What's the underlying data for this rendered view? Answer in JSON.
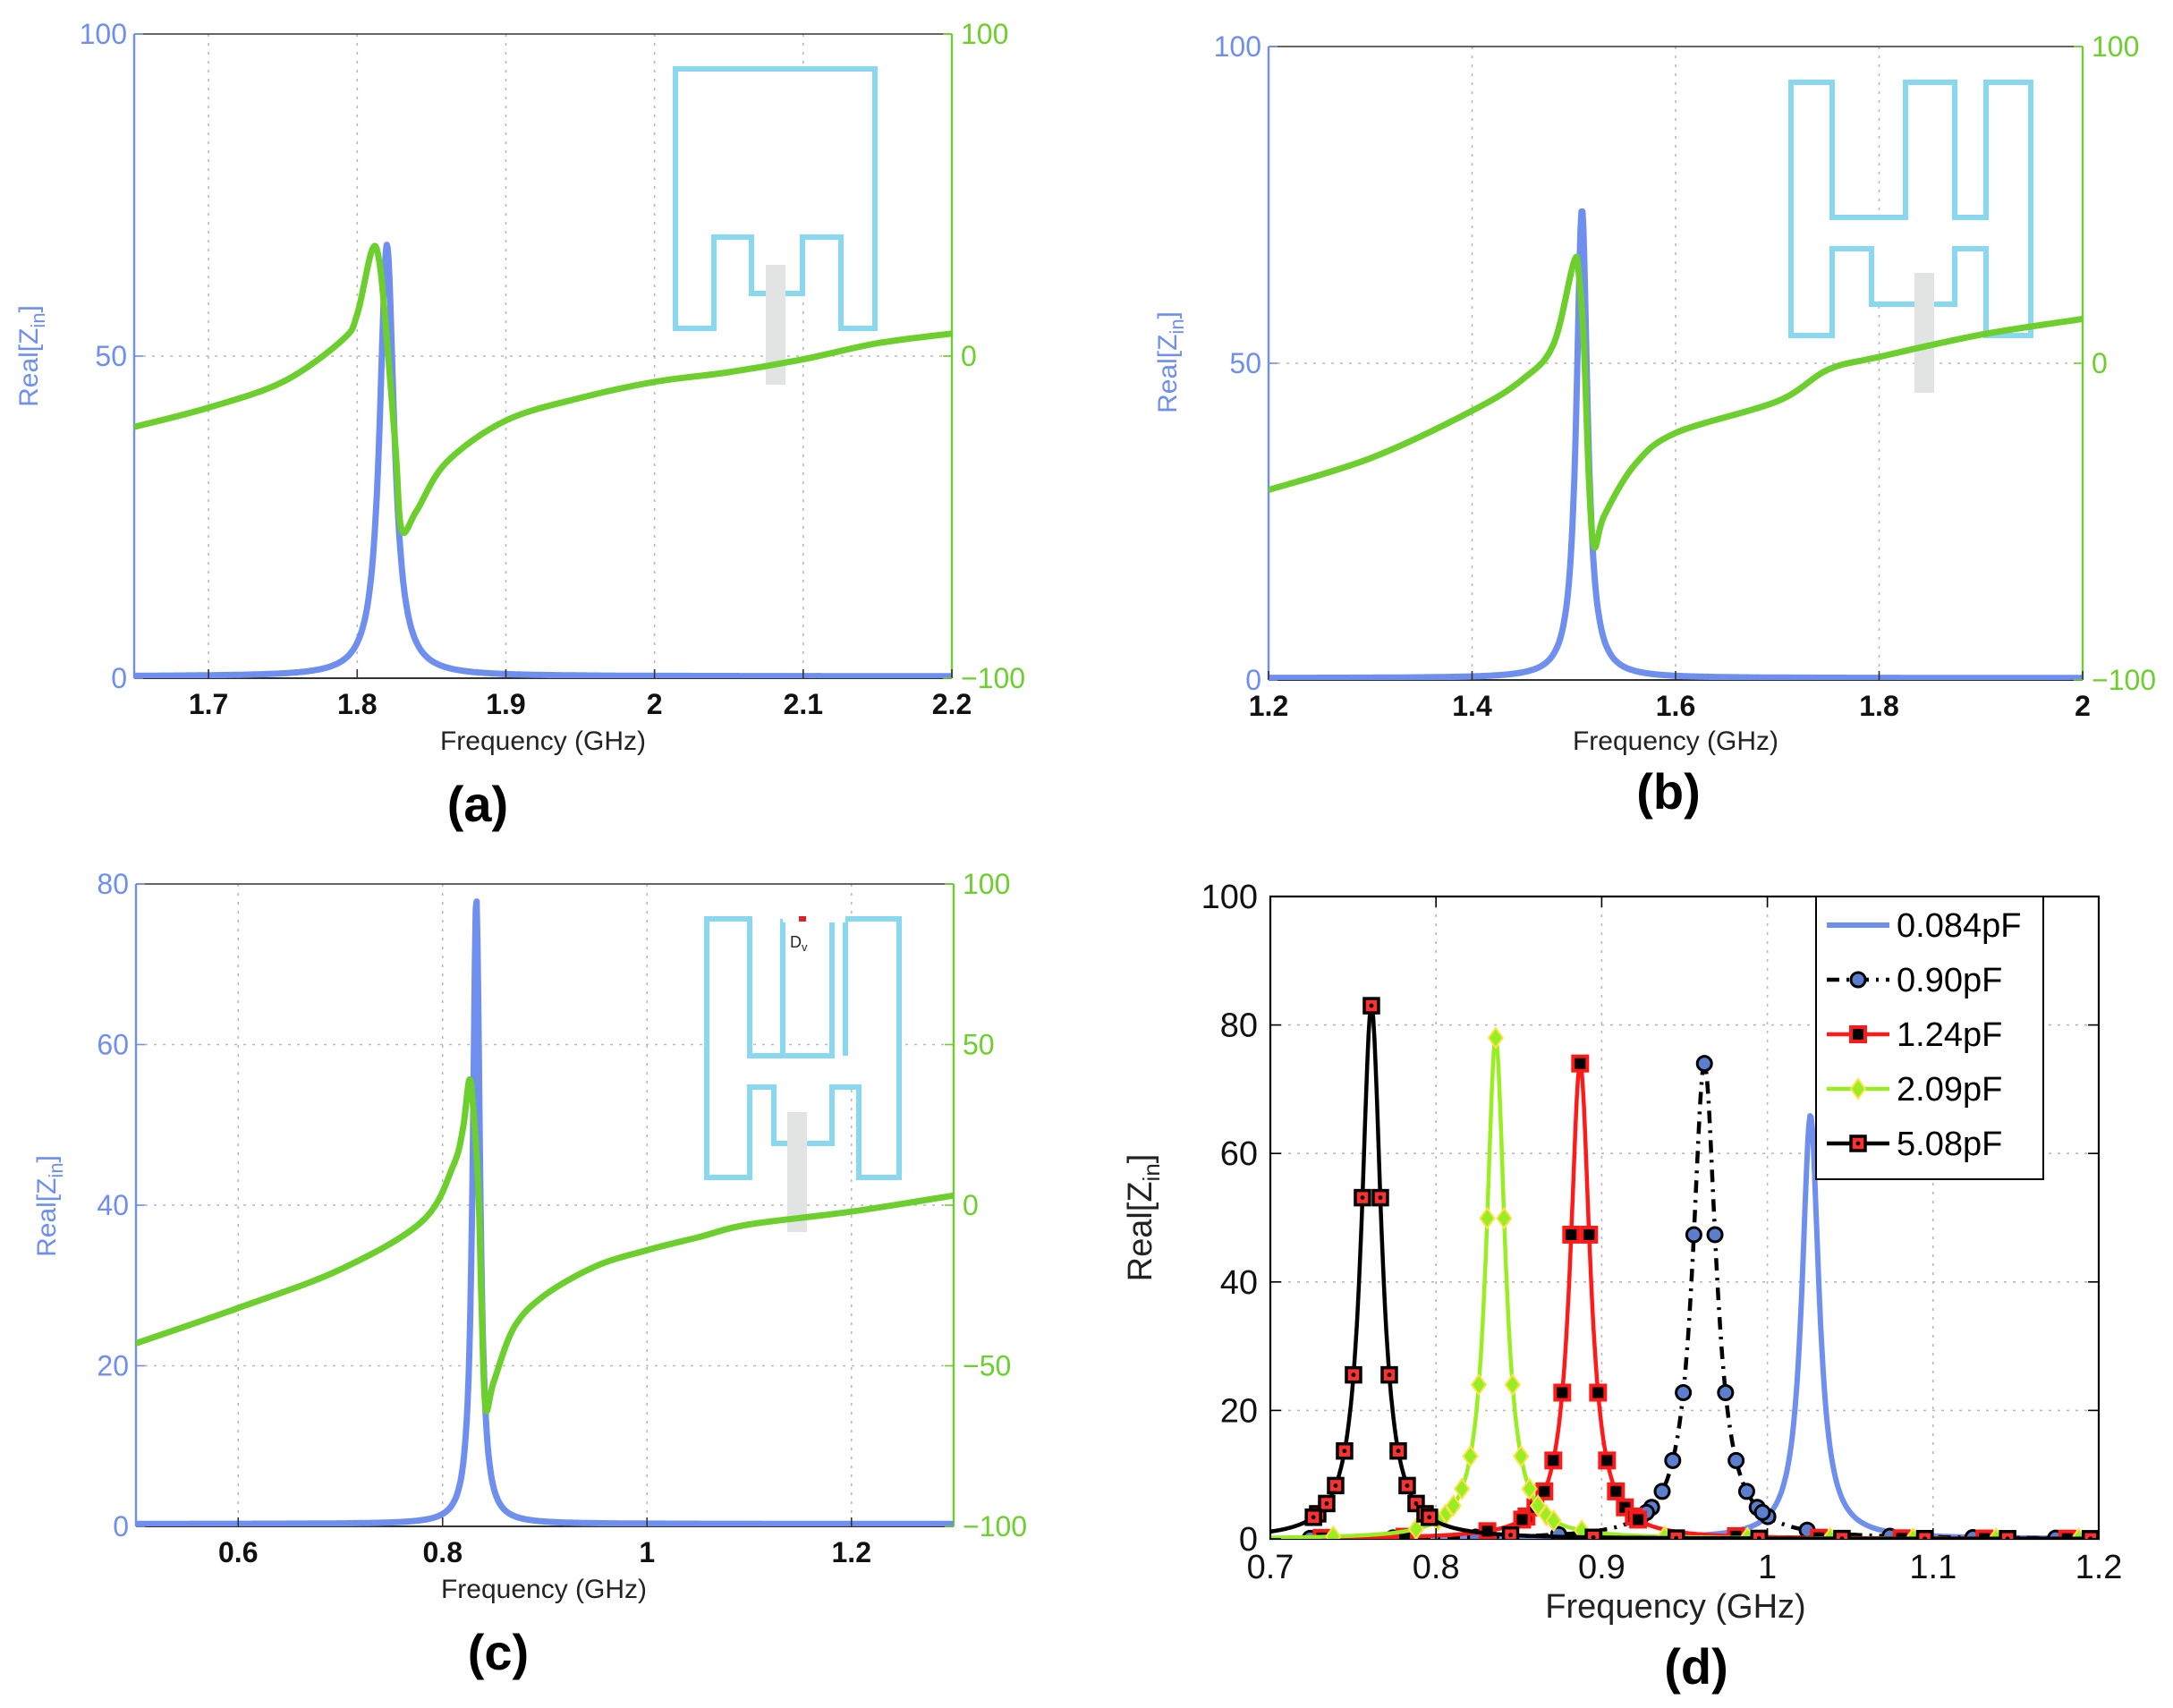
{
  "colors": {
    "left_axis": "#6f8fef",
    "right_axis": "#6dcf2e",
    "inset": "#8ad8f0",
    "feed": "#e2e4e4"
  },
  "chart_data": [
    {
      "panel_label": "(a)",
      "type": "line",
      "xlabel": "Frequency (GHz)",
      "ylabel": "Real[Z",
      "ylabel_sub": "in",
      "ylabel_close": "]",
      "xlim": [
        1.65,
        2.2
      ],
      "ylim_left": [
        0,
        100
      ],
      "ylim_right": [
        -100,
        100
      ],
      "xticks": [
        "1.7",
        "1.8",
        "1.9",
        "2",
        "2.1",
        "2.2"
      ],
      "yticks_left": [
        "0",
        "50",
        "100"
      ],
      "yticks_right": [
        "−100",
        "0",
        "100"
      ],
      "grid": true,
      "series": [
        {
          "axis": "left",
          "color": "#6f8fef",
          "peak_x": 1.82,
          "peak_y": 67,
          "width": 0.0058,
          "base": 0.3
        },
        {
          "axis": "right",
          "color": "#6dcf2e",
          "points": [
            [
              1.65,
              -22
            ],
            [
              1.7,
              -16
            ],
            [
              1.75,
              -8
            ],
            [
              1.79,
              5
            ],
            [
              1.8,
              13
            ],
            [
              1.81,
              33
            ],
            [
              1.815,
              29
            ],
            [
              1.82,
              5
            ],
            [
              1.826,
              -30
            ],
            [
              1.83,
              -54
            ],
            [
              1.84,
              -48
            ],
            [
              1.86,
              -33
            ],
            [
              1.9,
              -20
            ],
            [
              1.95,
              -13
            ],
            [
              2.0,
              -8
            ],
            [
              2.05,
              -5
            ],
            [
              2.1,
              -1
            ],
            [
              2.15,
              4
            ],
            [
              2.2,
              7
            ]
          ]
        }
      ]
    },
    {
      "panel_label": "(b)",
      "type": "line",
      "xlabel": "Frequency (GHz)",
      "ylabel": "Real[Z",
      "ylabel_sub": "in",
      "ylabel_close": "]",
      "xlim": [
        1.2,
        2.0
      ],
      "ylim_left": [
        0,
        100
      ],
      "ylim_right": [
        -100,
        100
      ],
      "xticks": [
        "1.2",
        "1.4",
        "1.6",
        "1.8",
        "2"
      ],
      "yticks_left": [
        "0",
        "50",
        "100"
      ],
      "yticks_right": [
        "−100",
        "0",
        "100"
      ],
      "grid": true,
      "series": [
        {
          "axis": "left",
          "color": "#6f8fef",
          "peak_x": 1.508,
          "peak_y": 74,
          "width": 0.0065,
          "base": 0.3
        },
        {
          "axis": "right",
          "color": "#6dcf2e",
          "points": [
            [
              1.2,
              -40
            ],
            [
              1.3,
              -30
            ],
            [
              1.4,
              -15
            ],
            [
              1.45,
              -5
            ],
            [
              1.48,
              6
            ],
            [
              1.5,
              32
            ],
            [
              1.505,
              28
            ],
            [
              1.51,
              5
            ],
            [
              1.515,
              -38
            ],
            [
              1.52,
              -58
            ],
            [
              1.53,
              -48
            ],
            [
              1.56,
              -32
            ],
            [
              1.6,
              -22
            ],
            [
              1.7,
              -12
            ],
            [
              1.75,
              -2
            ],
            [
              1.8,
              2
            ],
            [
              1.9,
              9
            ],
            [
              2.0,
              14
            ]
          ]
        }
      ]
    },
    {
      "panel_label": "(c)",
      "type": "line",
      "xlabel": "Frequency (GHz)",
      "ylabel": "Real[Z",
      "ylabel_sub": "in",
      "ylabel_close": "]",
      "xlim": [
        0.5,
        1.3
      ],
      "ylim_left": [
        0,
        80
      ],
      "ylim_right": [
        -100,
        100
      ],
      "xticks": [
        "0.6",
        "0.8",
        "1",
        "1.2"
      ],
      "yticks_left": [
        "0",
        "20",
        "40",
        "60",
        "80"
      ],
      "yticks_right": [
        "−100",
        "−50",
        "0",
        "50",
        "100"
      ],
      "inset_text": "D",
      "inset_text_sub": "v",
      "grid": true,
      "series": [
        {
          "axis": "left",
          "color": "#6f8fef",
          "peak_x": 0.833,
          "peak_y": 78,
          "width": 0.0042,
          "base": 0.3
        },
        {
          "axis": "right",
          "color": "#6dcf2e",
          "points": [
            [
              0.5,
              -43
            ],
            [
              0.6,
              -32
            ],
            [
              0.7,
              -20
            ],
            [
              0.78,
              -5
            ],
            [
              0.81,
              12
            ],
            [
              0.82,
              24
            ],
            [
              0.826,
              39
            ],
            [
              0.83,
              30
            ],
            [
              0.835,
              5
            ],
            [
              0.838,
              -30
            ],
            [
              0.842,
              -63
            ],
            [
              0.85,
              -55
            ],
            [
              0.87,
              -38
            ],
            [
              0.9,
              -28
            ],
            [
              0.95,
              -19
            ],
            [
              1.0,
              -14
            ],
            [
              1.05,
              -10
            ],
            [
              1.1,
              -6
            ],
            [
              1.2,
              -2
            ],
            [
              1.3,
              3
            ]
          ]
        }
      ]
    },
    {
      "panel_label": "(d)",
      "type": "line",
      "xlabel": "Frequency (GHz)",
      "ylabel": "Real[Z",
      "ylabel_sub": "in",
      "ylabel_close": "]",
      "xlim": [
        0.7,
        1.2
      ],
      "ylim": [
        0,
        100
      ],
      "xticks": [
        "0.7",
        "0.8",
        "0.9",
        "1",
        "1.1",
        "1.2"
      ],
      "yticks": [
        "0",
        "20",
        "40",
        "60",
        "80",
        "100"
      ],
      "legend_position": "top-right",
      "series": [
        {
          "name": "0.084pF",
          "color": "#6f8fef",
          "style": "solid",
          "marker": "none",
          "peak_x": 1.026,
          "peak_y": 66,
          "width": 0.0062
        },
        {
          "name": "0.90pF",
          "color": "#000000",
          "style": "dashdot",
          "marker": "circle",
          "peak_x": 0.962,
          "peak_y": 74,
          "width": 0.0085
        },
        {
          "name": "1.24pF",
          "color": "#ff1a1a",
          "style": "solid",
          "marker": "square",
          "peak_x": 0.887,
          "peak_y": 74,
          "width": 0.0072
        },
        {
          "name": "2.09pF",
          "color": "#99ee22",
          "style": "solid",
          "marker": "diamond",
          "peak_x": 0.836,
          "peak_y": 78,
          "width": 0.0068
        },
        {
          "name": "5.08pF",
          "color": "#000000",
          "style": "solid",
          "marker": "square-red-dot",
          "peak_x": 0.761,
          "peak_y": 83,
          "width": 0.0072
        }
      ]
    }
  ]
}
